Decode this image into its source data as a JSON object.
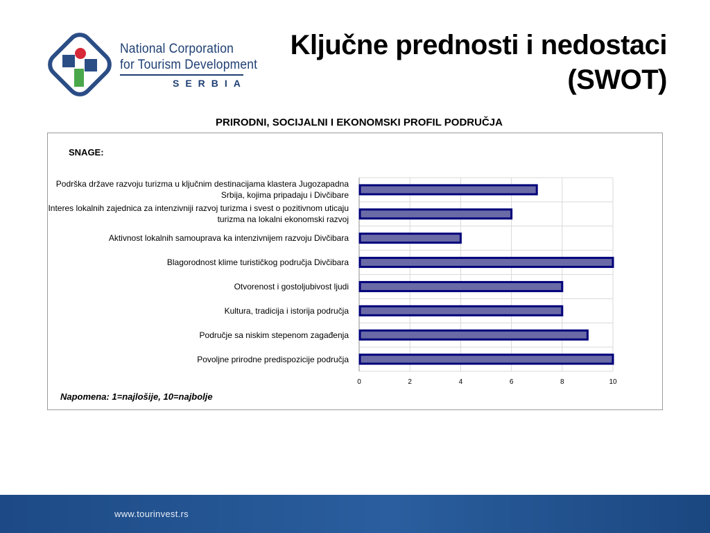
{
  "logo": {
    "line1": "National Corporation",
    "line2": "for Tourism Development",
    "line3": "SERBIA"
  },
  "title": {
    "line1": "Ključne prednosti i nedostaci",
    "line2": "(SWOT)"
  },
  "footer": {
    "url": "www.tourinvest.rs"
  },
  "colors": {
    "bar_fill": "#6a6aa6",
    "bar_border": "#00007a",
    "footer_band": "#1d4a86"
  },
  "chart_data": {
    "type": "bar",
    "orientation": "horizontal",
    "title": "PRIRODNI, SOCIJALNI I EKONOMSKI PROFIL PODRUČJA",
    "subtitle": "SNAGE:",
    "note": "Napomena: 1=najlošije, 10=najbolje",
    "categories": [
      "Podrška države razvoju turizma u ključnim destinacijama klastera Jugozapadna Srbija, kojima pripadaju i Divčibare",
      "Interes lokalnih zajednica za intenzivniji razvoj turizma i svest o pozitivnom uticaju turizma na lokalni ekonomski razvoj",
      "Aktivnost lokalnih samouprava ka intenzivnijem razvoju Divčibara",
      "Blagorodnost klime turističkog područja Divčibara",
      "Otvorenost i gostoljubivost ljudi",
      "Kultura, tradicija i istorija područja",
      "Područje sa niskim stepenom zagađenja",
      "Povoljne prirodne predispozicije područja"
    ],
    "values": [
      7,
      6,
      4,
      10,
      8,
      8,
      9,
      10
    ],
    "xlim": [
      0,
      10
    ],
    "xticks": [
      "0",
      "2",
      "4",
      "6",
      "8",
      "10"
    ],
    "grid": true,
    "legend": "none"
  }
}
